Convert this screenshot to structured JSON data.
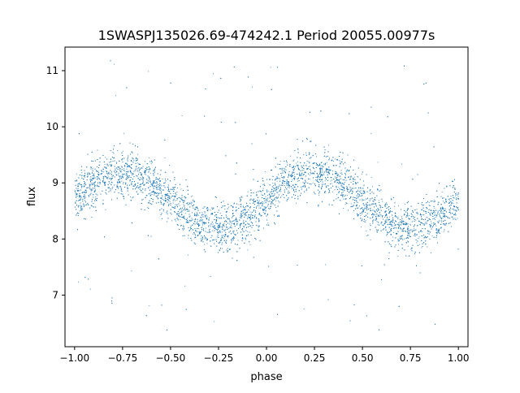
{
  "chart_data": {
    "type": "scatter",
    "title": "1SWASPJ135026.69-474242.1 Period 20055.00977s",
    "xlabel": "phase",
    "ylabel": "flux",
    "xlim": [
      -1.05,
      1.05
    ],
    "ylim": [
      6.08,
      11.42
    ],
    "xticks": [
      -1.0,
      -0.75,
      -0.5,
      -0.25,
      0.0,
      0.25,
      0.5,
      0.75,
      1.0
    ],
    "xtick_labels": [
      "−1.00",
      "−0.75",
      "−0.50",
      "−0.25",
      "0.00",
      "0.25",
      "0.50",
      "0.75",
      "1.00"
    ],
    "yticks": [
      7,
      8,
      9,
      10,
      11
    ],
    "ytick_labels": [
      "7",
      "8",
      "9",
      "10",
      "11"
    ],
    "grid": false,
    "point_color": "#1f77b4",
    "model": {
      "description": "folded light curve, two cycles over phase -1..1",
      "mean_flux": 8.7,
      "amplitude": 0.5,
      "max_phase": [
        -0.75,
        0.25
      ],
      "min_phase": [
        -0.25,
        0.75
      ],
      "scatter_sigma": 0.22,
      "outlier_range": [
        6.3,
        11.2
      ]
    }
  }
}
